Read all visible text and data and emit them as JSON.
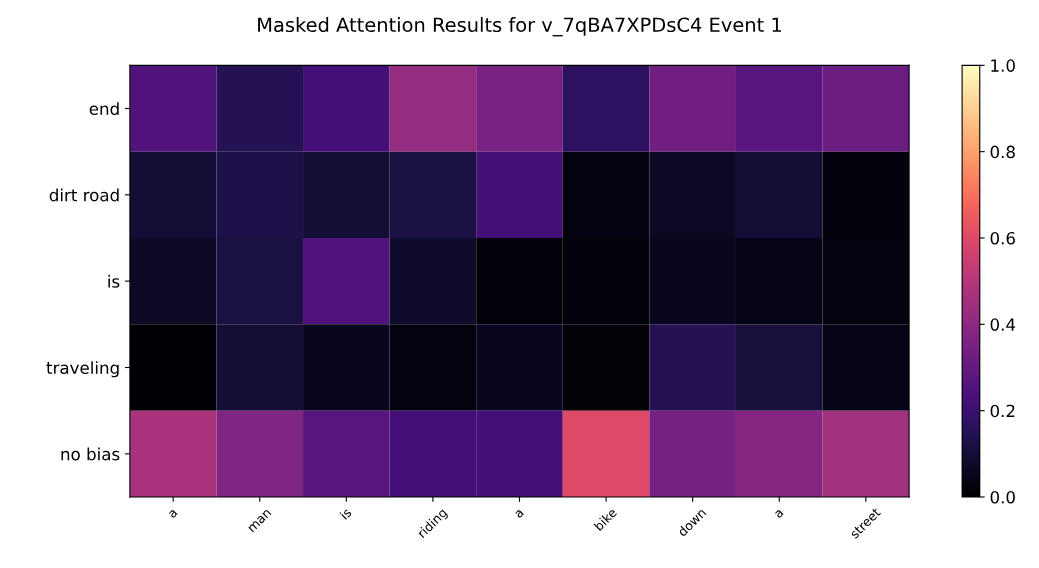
{
  "chart_data": {
    "type": "heatmap",
    "title": "Masked Attention Results for v_7qBA7XPDsC4 Event 1",
    "categories": [
      "a",
      "man",
      "is",
      "riding",
      "a",
      "bike",
      "down",
      "a",
      "street"
    ],
    "y_categories": [
      "end",
      "dirt road",
      "is",
      "traveling",
      "no bias"
    ],
    "cells": [
      [
        0.25,
        0.15,
        0.22,
        0.42,
        0.35,
        0.17,
        0.33,
        0.27,
        0.32
      ],
      [
        0.1,
        0.13,
        0.1,
        0.12,
        0.22,
        0.03,
        0.07,
        0.1,
        0.02
      ],
      [
        0.07,
        0.12,
        0.25,
        0.08,
        0.02,
        0.02,
        0.06,
        0.04,
        0.03
      ],
      [
        0.0,
        0.1,
        0.06,
        0.03,
        0.06,
        0.01,
        0.15,
        0.11,
        0.04
      ],
      [
        0.47,
        0.37,
        0.27,
        0.22,
        0.22,
        0.6,
        0.34,
        0.38,
        0.45
      ]
    ],
    "clim": [
      0,
      1
    ],
    "cticks": [
      {
        "value": 0,
        "label": "0.0"
      },
      0.2,
      0.4,
      0.6,
      0.8,
      {
        "value": 1,
        "label": "1.0"
      }
    ]
  }
}
